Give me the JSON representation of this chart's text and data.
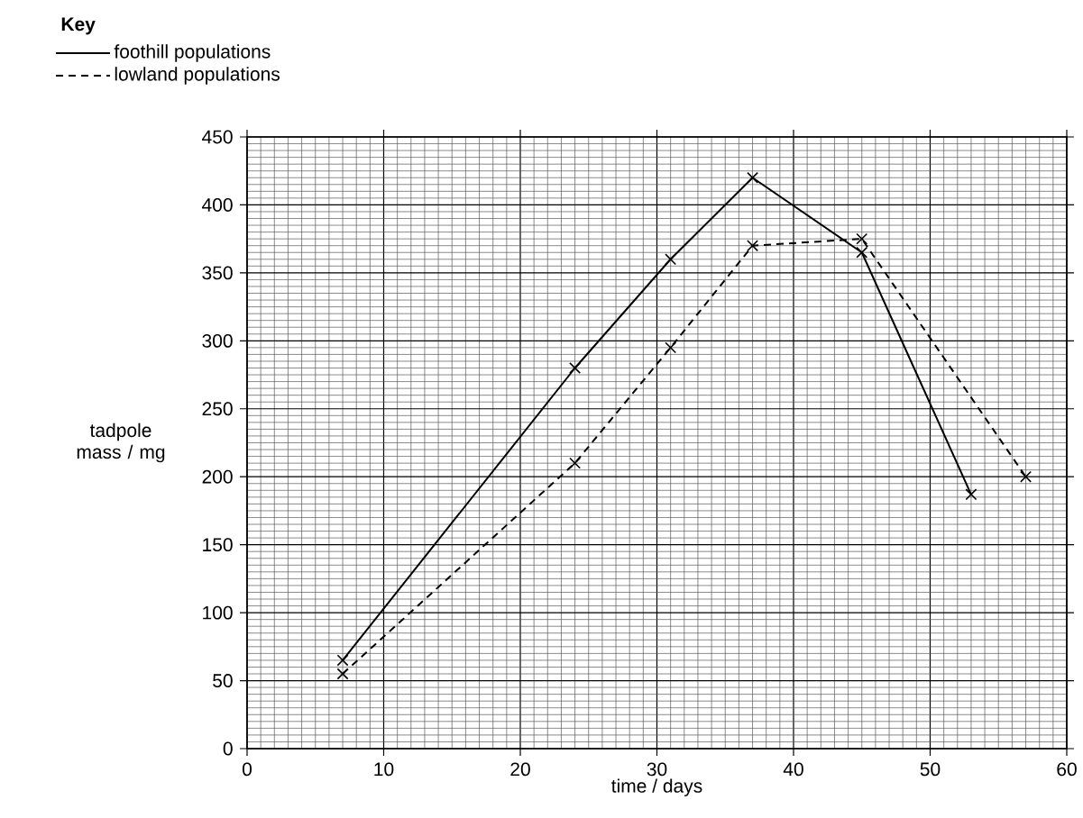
{
  "chart_data": {
    "type": "line",
    "xlabel": "time / days",
    "ylabel": "tadpole mass / mg",
    "legend_title": "Key",
    "legend": "top left",
    "grid": true,
    "marker": "cross",
    "xlim": [
      0,
      60
    ],
    "ylim": [
      0,
      450
    ],
    "xticks": [
      0,
      10,
      20,
      30,
      40,
      50,
      60
    ],
    "yticks": [
      0,
      50,
      100,
      150,
      200,
      250,
      300,
      350,
      400,
      450
    ],
    "series": [
      {
        "name": "foothill populations",
        "color": "#000000",
        "line_style": "solid",
        "x": [
          7,
          24,
          31,
          37,
          45,
          53
        ],
        "values": [
          65,
          280,
          360,
          420,
          365,
          187
        ]
      },
      {
        "name": "lowland populations",
        "color": "#000000",
        "line_style": "dashed",
        "x": [
          7,
          24,
          31,
          37,
          45,
          57
        ],
        "values": [
          55,
          210,
          295,
          370,
          375,
          200
        ]
      }
    ]
  }
}
